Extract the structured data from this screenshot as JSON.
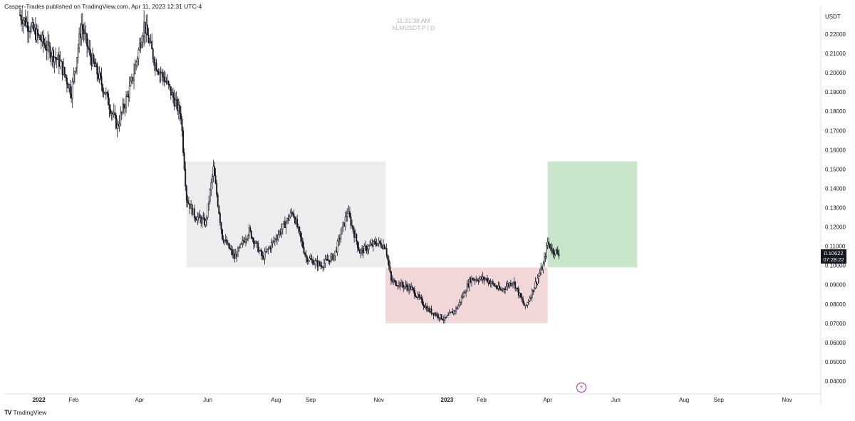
{
  "header": {
    "publisher": "Casper-Trades published on TradingView.com, Apr 11, 2023 12:31 UTC-4"
  },
  "watermark": {
    "time": "11:31:38 AM",
    "symbol": "XLMUSDT.P | D"
  },
  "price_tag": {
    "price": "0.10622",
    "countdown": "07:28:22"
  },
  "footer": {
    "logo": "TradingView"
  },
  "colors": {
    "candle": "#131722",
    "range_box": "#ededed",
    "loss_zone": "#f2d7d9",
    "profit_zone": "#c8e6c9",
    "alert": "#9c27b0"
  },
  "icons": {
    "alert": "lightning-icon",
    "logo": "tradingview-logo-icon"
  },
  "chart_data": {
    "type": "candlestick",
    "title": "XLMUSDT.P",
    "interval": "D",
    "currency": "USDT",
    "y_ticks": [
      "0.22000",
      "0.21000",
      "0.20000",
      "0.19000",
      "0.18000",
      "0.17000",
      "0.16000",
      "0.15000",
      "0.14000",
      "0.13000",
      "0.12000",
      "0.11000",
      "0.10000",
      "0.09000",
      "0.08000",
      "0.07000",
      "0.06000",
      "0.05000",
      "0.04000"
    ],
    "x_ticks": [
      {
        "date": "2022-01-01",
        "label": "2022",
        "bold": true
      },
      {
        "date": "2022-02-01",
        "label": "Feb"
      },
      {
        "date": "2022-04-01",
        "label": "Apr"
      },
      {
        "date": "2022-06-01",
        "label": "Jun"
      },
      {
        "date": "2022-08-01",
        "label": "Aug"
      },
      {
        "date": "2022-09-01",
        "label": "Sep"
      },
      {
        "date": "2022-11-01",
        "label": "Nov"
      },
      {
        "date": "2023-01-01",
        "label": "2023",
        "bold": true
      },
      {
        "date": "2023-02-01",
        "label": "Feb"
      },
      {
        "date": "2023-04-01",
        "label": "Apr"
      },
      {
        "date": "2023-06-01",
        "label": "Jun"
      },
      {
        "date": "2023-08-01",
        "label": "Aug"
      },
      {
        "date": "2023-09-01",
        "label": "Sep"
      },
      {
        "date": "2023-11-01",
        "label": "Nov"
      }
    ],
    "ylim": [
      0.035,
      0.225
    ],
    "xlim": [
      "2021-12-01",
      "2023-11-30"
    ],
    "grid": false,
    "close_path": [
      [
        "2021-12-15",
        0.23
      ],
      [
        "2022-01-20",
        0.205
      ],
      [
        "2022-01-30",
        0.19
      ],
      [
        "2022-02-08",
        0.225
      ],
      [
        "2022-02-15",
        0.21
      ],
      [
        "2022-03-01",
        0.19
      ],
      [
        "2022-03-12",
        0.172
      ],
      [
        "2022-03-25",
        0.195
      ],
      [
        "2022-04-05",
        0.225
      ],
      [
        "2022-04-15",
        0.205
      ],
      [
        "2022-04-25",
        0.195
      ],
      [
        "2022-05-08",
        0.178
      ],
      [
        "2022-05-13",
        0.135
      ],
      [
        "2022-05-20",
        0.126
      ],
      [
        "2022-05-30",
        0.122
      ],
      [
        "2022-06-06",
        0.15
      ],
      [
        "2022-06-14",
        0.115
      ],
      [
        "2022-06-25",
        0.104
      ],
      [
        "2022-07-08",
        0.118
      ],
      [
        "2022-07-20",
        0.104
      ],
      [
        "2022-08-05",
        0.118
      ],
      [
        "2022-08-16",
        0.128
      ],
      [
        "2022-08-28",
        0.104
      ],
      [
        "2022-09-10",
        0.1
      ],
      [
        "2022-09-22",
        0.105
      ],
      [
        "2022-10-04",
        0.128
      ],
      [
        "2022-10-15",
        0.107
      ],
      [
        "2022-10-30",
        0.112
      ],
      [
        "2022-11-07",
        0.11
      ],
      [
        "2022-11-12",
        0.092
      ],
      [
        "2022-11-30",
        0.088
      ],
      [
        "2022-12-15",
        0.077
      ],
      [
        "2022-12-30",
        0.072
      ],
      [
        "2023-01-10",
        0.078
      ],
      [
        "2023-01-22",
        0.093
      ],
      [
        "2023-02-05",
        0.093
      ],
      [
        "2023-02-18",
        0.087
      ],
      [
        "2023-03-01",
        0.092
      ],
      [
        "2023-03-12",
        0.078
      ],
      [
        "2023-03-22",
        0.092
      ],
      [
        "2023-03-28",
        0.1
      ],
      [
        "2023-04-01",
        0.112
      ],
      [
        "2023-04-05",
        0.108
      ],
      [
        "2023-04-11",
        0.1062
      ]
    ],
    "zones": [
      {
        "name": "range-box",
        "start": "2022-05-13",
        "end": "2022-11-07",
        "top": 0.154,
        "bottom": 0.099
      },
      {
        "name": "loss-zone",
        "start": "2022-11-07",
        "end": "2023-04-01",
        "top": 0.099,
        "bottom": 0.07
      },
      {
        "name": "profit-zone",
        "start": "2023-04-01",
        "end": "2023-06-20",
        "top": 0.154,
        "bottom": 0.099
      }
    ]
  }
}
